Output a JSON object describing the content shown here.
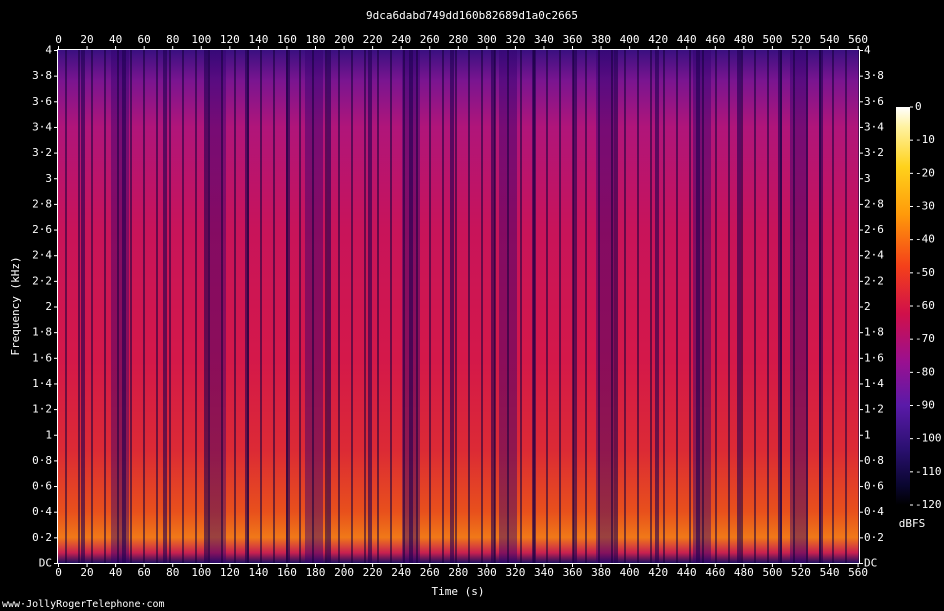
{
  "chart_data": {
    "type": "spectrogram",
    "title": "9dca6dabd749dd160b82689d1a0c2665",
    "x_label": "Time (s)",
    "y_label": "Frequency (kHz)",
    "xlim": [
      0,
      561
    ],
    "xticks": [
      0,
      20,
      40,
      60,
      80,
      100,
      120,
      140,
      160,
      180,
      200,
      220,
      240,
      260,
      280,
      300,
      320,
      340,
      360,
      380,
      400,
      420,
      440,
      460,
      480,
      500,
      520,
      540,
      560
    ],
    "ylim": [
      0,
      4
    ],
    "yticks": [
      {
        "value": 0,
        "label": "DC"
      },
      {
        "value": 0.2,
        "label": "0·2"
      },
      {
        "value": 0.4,
        "label": "0·4"
      },
      {
        "value": 0.6,
        "label": "0·6"
      },
      {
        "value": 0.8,
        "label": "0·8"
      },
      1,
      {
        "value": 1.2,
        "label": "1·2"
      },
      {
        "value": 1.4,
        "label": "1·4"
      },
      {
        "value": 1.6,
        "label": "1·6"
      },
      {
        "value": 1.8,
        "label": "1·8"
      },
      2,
      {
        "value": 2.2,
        "label": "2·2"
      },
      {
        "value": 2.4,
        "label": "2·4"
      },
      {
        "value": 2.6,
        "label": "2·6"
      },
      {
        "value": 2.8,
        "label": "2·8"
      },
      3,
      {
        "value": 3.2,
        "label": "3·2"
      },
      {
        "value": 3.4,
        "label": "3·4"
      },
      {
        "value": 3.6,
        "label": "3·6"
      },
      {
        "value": 3.8,
        "label": "3·8"
      },
      4
    ],
    "colorbar_label": "dBFS",
    "clim": [
      -120,
      0
    ],
    "cticks": [
      0,
      -10,
      -20,
      -30,
      -40,
      -50,
      -60,
      -70,
      -80,
      -90,
      -100,
      -110,
      -120
    ],
    "footer": "www·JollyRogerTelephone·com"
  }
}
